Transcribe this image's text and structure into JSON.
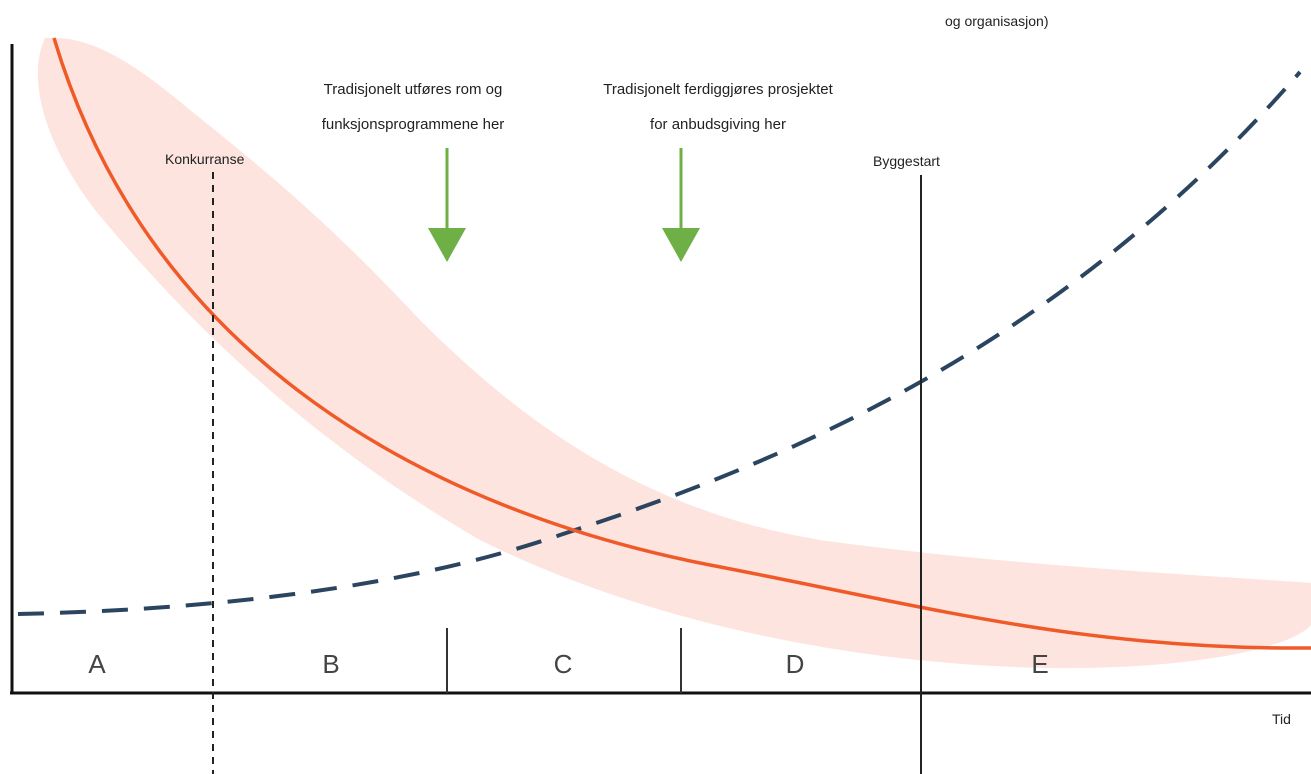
{
  "top_cut_text": "og organisasjon)",
  "axis": {
    "x_label": "Tid"
  },
  "notes": {
    "rom_line1": "Tradisjonelt utføres rom og",
    "rom_line2": "funksjonsprogrammene her",
    "anbud_line1": "Tradisjonelt ferdiggjøres prosjektet",
    "anbud_line2": "for anbudsgiving her"
  },
  "markers": {
    "konkurranse": "Konkurranse",
    "byggestart": "Byggestart"
  },
  "phases": [
    "A",
    "B",
    "C",
    "D",
    "E"
  ],
  "colors": {
    "influence_curve": "#f05a28",
    "influence_band": "#fde4df",
    "cost_curve": "#2b4560",
    "arrow": "#6fb046",
    "axis": "#111111"
  }
}
